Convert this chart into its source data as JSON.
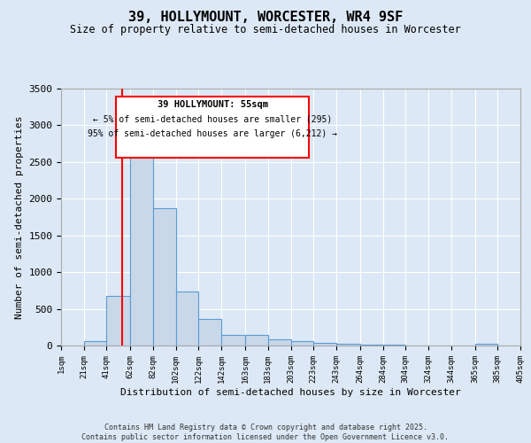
{
  "title_line1": "39, HOLLYMOUNT, WORCESTER, WR4 9SF",
  "title_line2": "Size of property relative to semi-detached houses in Worcester",
  "xlabel": "Distribution of semi-detached houses by size in Worcester",
  "ylabel": "Number of semi-detached properties",
  "footer_line1": "Contains HM Land Registry data © Crown copyright and database right 2025.",
  "footer_line2": "Contains public sector information licensed under the Open Government Licence v3.0.",
  "annotation_line1": "39 HOLLYMOUNT: 55sqm",
  "annotation_line2": "← 5% of semi-detached houses are smaller (295)",
  "annotation_line3": "95% of semi-detached houses are larger (6,212) →",
  "bar_edges": [
    1,
    21,
    41,
    62,
    82,
    102,
    122,
    142,
    163,
    183,
    203,
    223,
    243,
    264,
    284,
    304,
    324,
    344,
    365,
    385,
    405
  ],
  "bar_heights": [
    0,
    55,
    670,
    2590,
    1870,
    740,
    360,
    150,
    150,
    80,
    55,
    40,
    30,
    10,
    10,
    5,
    0,
    0,
    30,
    0,
    0
  ],
  "bar_color": "#c8d8e8",
  "bar_edge_color": "#5b9bd5",
  "red_line_x": 55,
  "ylim": [
    0,
    3500
  ],
  "yticks": [
    0,
    500,
    1000,
    1500,
    2000,
    2500,
    3000,
    3500
  ],
  "background_color": "#dce8f5",
  "plot_background": "#dce8f5",
  "grid_color": "#ffffff",
  "annotation_box_color": "#cc0000"
}
